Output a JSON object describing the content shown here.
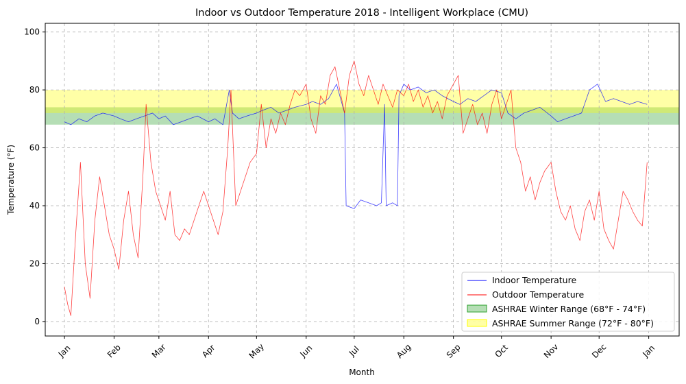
{
  "chart_data": {
    "type": "line",
    "title": "Indoor vs Outdoor Temperature 2018 - Intelligent Workplace (CMU)",
    "xlabel": "Month",
    "ylabel": "Temperature (°F)",
    "x_range": [
      "2017-12-20",
      "2019-01-20"
    ],
    "ylim": [
      -5,
      103
    ],
    "yticks": [
      0,
      20,
      40,
      60,
      80,
      100
    ],
    "xticks": [
      {
        "label": "Jan",
        "date": "2018-01-01"
      },
      {
        "label": "Feb",
        "date": "2018-02-01"
      },
      {
        "label": "Mar",
        "date": "2018-03-01"
      },
      {
        "label": "Apr",
        "date": "2018-04-01"
      },
      {
        "label": "May",
        "date": "2018-05-01"
      },
      {
        "label": "Jun",
        "date": "2018-06-01"
      },
      {
        "label": "Jul",
        "date": "2018-07-01"
      },
      {
        "label": "Aug",
        "date": "2018-08-01"
      },
      {
        "label": "Sep",
        "date": "2018-09-01"
      },
      {
        "label": "Oct",
        "date": "2018-10-01"
      },
      {
        "label": "Nov",
        "date": "2018-11-01"
      },
      {
        "label": "Dec",
        "date": "2018-12-01"
      },
      {
        "label": "Jan",
        "date": "2019-01-01"
      }
    ],
    "grid": true,
    "legend_position": "lower-right",
    "bands": [
      {
        "name": "ASHRAE Winter Range (68°F - 74°F)",
        "y0": 68,
        "y1": 74,
        "color": "#2ca02c",
        "opacity": 0.35
      },
      {
        "name": "ASHRAE Summer Range (72°F - 80°F)",
        "y0": 72,
        "y1": 80,
        "color": "#ffff00",
        "opacity": 0.35
      }
    ],
    "series": [
      {
        "name": "Indoor Temperature",
        "color": "#0000ff",
        "points": [
          [
            "2018-01-01",
            69
          ],
          [
            "2018-01-05",
            68
          ],
          [
            "2018-01-10",
            70
          ],
          [
            "2018-01-15",
            69
          ],
          [
            "2018-01-20",
            71
          ],
          [
            "2018-01-25",
            72
          ],
          [
            "2018-02-01",
            71
          ],
          [
            "2018-02-05",
            70
          ],
          [
            "2018-02-10",
            69
          ],
          [
            "2018-02-15",
            70
          ],
          [
            "2018-02-20",
            71
          ],
          [
            "2018-02-25",
            72
          ],
          [
            "2018-03-01",
            70
          ],
          [
            "2018-03-05",
            71
          ],
          [
            "2018-03-10",
            68
          ],
          [
            "2018-03-15",
            69
          ],
          [
            "2018-03-20",
            70
          ],
          [
            "2018-03-25",
            71
          ],
          [
            "2018-04-01",
            69
          ],
          [
            "2018-04-05",
            70
          ],
          [
            "2018-04-10",
            68
          ],
          [
            "2018-04-14",
            80
          ],
          [
            "2018-04-16",
            72
          ],
          [
            "2018-04-20",
            70
          ],
          [
            "2018-04-25",
            71
          ],
          [
            "2018-05-01",
            72
          ],
          [
            "2018-05-05",
            73
          ],
          [
            "2018-05-10",
            74
          ],
          [
            "2018-05-15",
            72
          ],
          [
            "2018-05-20",
            73
          ],
          [
            "2018-05-25",
            74
          ],
          [
            "2018-06-01",
            75
          ],
          [
            "2018-06-05",
            76
          ],
          [
            "2018-06-10",
            75
          ],
          [
            "2018-06-15",
            77
          ],
          [
            "2018-06-20",
            82
          ],
          [
            "2018-06-23",
            76
          ],
          [
            "2018-06-25",
            72
          ],
          [
            "2018-06-26",
            40
          ],
          [
            "2018-07-01",
            39
          ],
          [
            "2018-07-05",
            42
          ],
          [
            "2018-07-10",
            41
          ],
          [
            "2018-07-15",
            40
          ],
          [
            "2018-07-18",
            41
          ],
          [
            "2018-07-20",
            75
          ],
          [
            "2018-07-21",
            40
          ],
          [
            "2018-07-25",
            41
          ],
          [
            "2018-07-28",
            40
          ],
          [
            "2018-07-29",
            78
          ],
          [
            "2018-08-01",
            82
          ],
          [
            "2018-08-05",
            80
          ],
          [
            "2018-08-10",
            81
          ],
          [
            "2018-08-15",
            79
          ],
          [
            "2018-08-20",
            80
          ],
          [
            "2018-08-25",
            78
          ],
          [
            "2018-09-01",
            76
          ],
          [
            "2018-09-05",
            75
          ],
          [
            "2018-09-10",
            77
          ],
          [
            "2018-09-15",
            76
          ],
          [
            "2018-09-20",
            78
          ],
          [
            "2018-09-25",
            80
          ],
          [
            "2018-10-01",
            79
          ],
          [
            "2018-10-05",
            72
          ],
          [
            "2018-10-10",
            70
          ],
          [
            "2018-10-15",
            72
          ],
          [
            "2018-10-20",
            73
          ],
          [
            "2018-10-25",
            74
          ],
          [
            "2018-11-01",
            71
          ],
          [
            "2018-11-05",
            69
          ],
          [
            "2018-11-10",
            70
          ],
          [
            "2018-11-15",
            71
          ],
          [
            "2018-11-20",
            72
          ],
          [
            "2018-11-25",
            80
          ],
          [
            "2018-11-30",
            82
          ],
          [
            "2018-12-05",
            76
          ],
          [
            "2018-12-10",
            77
          ],
          [
            "2018-12-15",
            76
          ],
          [
            "2018-12-20",
            75
          ],
          [
            "2018-12-25",
            76
          ],
          [
            "2018-12-31",
            75
          ]
        ]
      },
      {
        "name": "Outdoor Temperature",
        "color": "#ff0000",
        "points": [
          [
            "2018-01-01",
            12
          ],
          [
            "2018-01-03",
            6
          ],
          [
            "2018-01-05",
            2
          ],
          [
            "2018-01-08",
            30
          ],
          [
            "2018-01-11",
            55
          ],
          [
            "2018-01-14",
            20
          ],
          [
            "2018-01-17",
            8
          ],
          [
            "2018-01-20",
            35
          ],
          [
            "2018-01-23",
            50
          ],
          [
            "2018-01-26",
            40
          ],
          [
            "2018-01-29",
            30
          ],
          [
            "2018-02-01",
            25
          ],
          [
            "2018-02-04",
            18
          ],
          [
            "2018-02-07",
            35
          ],
          [
            "2018-02-10",
            45
          ],
          [
            "2018-02-13",
            30
          ],
          [
            "2018-02-16",
            22
          ],
          [
            "2018-02-19",
            50
          ],
          [
            "2018-02-21",
            75
          ],
          [
            "2018-02-24",
            55
          ],
          [
            "2018-02-27",
            45
          ],
          [
            "2018-03-02",
            40
          ],
          [
            "2018-03-05",
            35
          ],
          [
            "2018-03-08",
            45
          ],
          [
            "2018-03-11",
            30
          ],
          [
            "2018-03-14",
            28
          ],
          [
            "2018-03-17",
            32
          ],
          [
            "2018-03-20",
            30
          ],
          [
            "2018-03-23",
            35
          ],
          [
            "2018-03-26",
            40
          ],
          [
            "2018-03-29",
            45
          ],
          [
            "2018-04-01",
            40
          ],
          [
            "2018-04-04",
            35
          ],
          [
            "2018-04-07",
            30
          ],
          [
            "2018-04-10",
            38
          ],
          [
            "2018-04-13",
            60
          ],
          [
            "2018-04-15",
            80
          ],
          [
            "2018-04-18",
            40
          ],
          [
            "2018-04-21",
            45
          ],
          [
            "2018-04-24",
            50
          ],
          [
            "2018-04-27",
            55
          ],
          [
            "2018-05-01",
            58
          ],
          [
            "2018-05-04",
            75
          ],
          [
            "2018-05-07",
            60
          ],
          [
            "2018-05-10",
            70
          ],
          [
            "2018-05-13",
            65
          ],
          [
            "2018-05-16",
            72
          ],
          [
            "2018-05-19",
            68
          ],
          [
            "2018-05-22",
            75
          ],
          [
            "2018-05-25",
            80
          ],
          [
            "2018-05-28",
            78
          ],
          [
            "2018-06-01",
            82
          ],
          [
            "2018-06-04",
            70
          ],
          [
            "2018-06-07",
            65
          ],
          [
            "2018-06-10",
            78
          ],
          [
            "2018-06-13",
            75
          ],
          [
            "2018-06-16",
            85
          ],
          [
            "2018-06-19",
            88
          ],
          [
            "2018-06-22",
            80
          ],
          [
            "2018-06-25",
            72
          ],
          [
            "2018-06-28",
            85
          ],
          [
            "2018-07-01",
            90
          ],
          [
            "2018-07-04",
            82
          ],
          [
            "2018-07-07",
            78
          ],
          [
            "2018-07-10",
            85
          ],
          [
            "2018-07-13",
            80
          ],
          [
            "2018-07-16",
            75
          ],
          [
            "2018-07-19",
            82
          ],
          [
            "2018-07-22",
            78
          ],
          [
            "2018-07-25",
            74
          ],
          [
            "2018-07-28",
            80
          ],
          [
            "2018-08-01",
            78
          ],
          [
            "2018-08-04",
            82
          ],
          [
            "2018-08-07",
            76
          ],
          [
            "2018-08-10",
            80
          ],
          [
            "2018-08-13",
            74
          ],
          [
            "2018-08-16",
            78
          ],
          [
            "2018-08-19",
            72
          ],
          [
            "2018-08-22",
            76
          ],
          [
            "2018-08-25",
            70
          ],
          [
            "2018-08-28",
            78
          ],
          [
            "2018-09-01",
            82
          ],
          [
            "2018-09-04",
            85
          ],
          [
            "2018-09-07",
            65
          ],
          [
            "2018-09-10",
            70
          ],
          [
            "2018-09-13",
            75
          ],
          [
            "2018-09-16",
            68
          ],
          [
            "2018-09-19",
            72
          ],
          [
            "2018-09-22",
            65
          ],
          [
            "2018-09-25",
            75
          ],
          [
            "2018-09-28",
            80
          ],
          [
            "2018-10-01",
            70
          ],
          [
            "2018-10-04",
            75
          ],
          [
            "2018-10-07",
            80
          ],
          [
            "2018-10-10",
            60
          ],
          [
            "2018-10-13",
            55
          ],
          [
            "2018-10-16",
            45
          ],
          [
            "2018-10-19",
            50
          ],
          [
            "2018-10-22",
            42
          ],
          [
            "2018-10-25",
            48
          ],
          [
            "2018-10-28",
            52
          ],
          [
            "2018-11-01",
            55
          ],
          [
            "2018-11-04",
            45
          ],
          [
            "2018-11-07",
            38
          ],
          [
            "2018-11-10",
            35
          ],
          [
            "2018-11-13",
            40
          ],
          [
            "2018-11-16",
            32
          ],
          [
            "2018-11-19",
            28
          ],
          [
            "2018-11-22",
            38
          ],
          [
            "2018-11-25",
            42
          ],
          [
            "2018-11-28",
            35
          ],
          [
            "2018-12-01",
            45
          ],
          [
            "2018-12-04",
            32
          ],
          [
            "2018-12-07",
            28
          ],
          [
            "2018-12-10",
            25
          ],
          [
            "2018-12-13",
            35
          ],
          [
            "2018-12-16",
            45
          ],
          [
            "2018-12-19",
            42
          ],
          [
            "2018-12-22",
            38
          ],
          [
            "2018-12-25",
            35
          ],
          [
            "2018-12-28",
            33
          ],
          [
            "2018-12-31",
            55
          ]
        ]
      }
    ]
  }
}
